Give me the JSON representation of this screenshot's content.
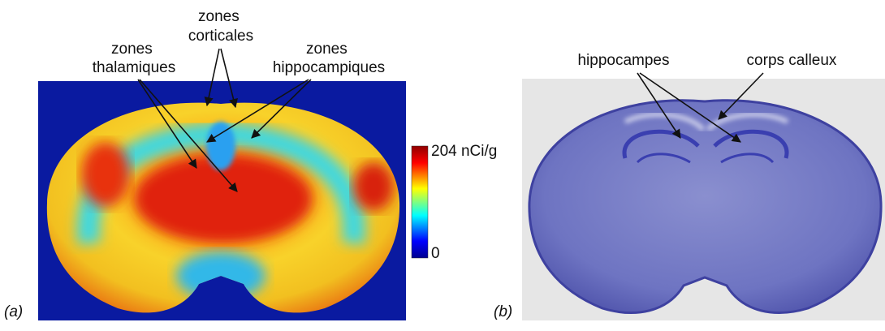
{
  "panel_a": {
    "tag": "(a)",
    "labels": [
      {
        "lines": [
          "zones",
          "corticales"
        ]
      },
      {
        "lines": [
          "zones",
          "thalamiques"
        ]
      },
      {
        "lines": [
          "zones",
          "hippocampiques"
        ]
      }
    ],
    "colorbar": {
      "max_label": "204 nCi/g",
      "min_label": "0"
    }
  },
  "panel_b": {
    "tag": "(b)",
    "labels": [
      {
        "lines": [
          "hippocampes"
        ]
      },
      {
        "lines": [
          "corps calleux"
        ]
      }
    ]
  }
}
